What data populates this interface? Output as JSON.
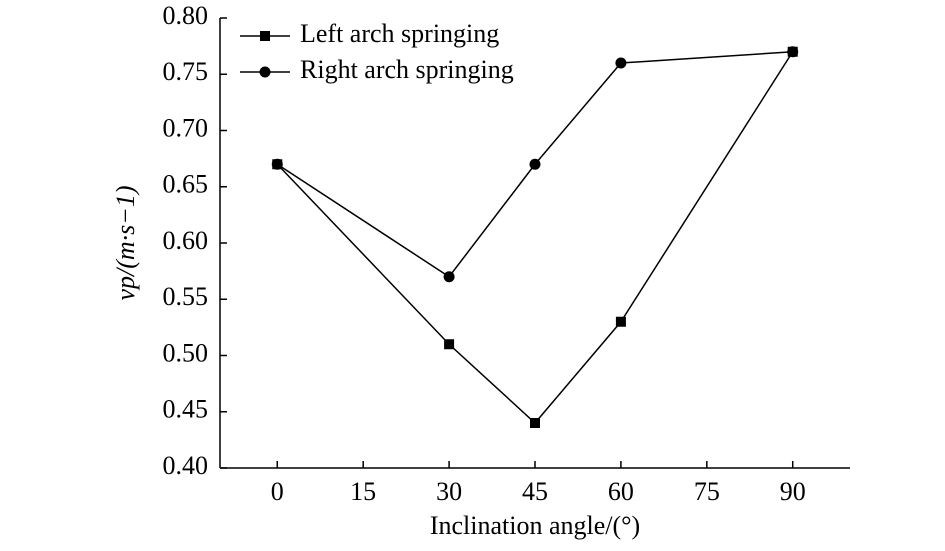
{
  "chart_data": {
    "type": "line",
    "x_label": "Inclination angle/(°)",
    "y_label": "vp/(m·s−1)",
    "x": [
      0,
      30,
      45,
      60,
      90
    ],
    "series": [
      {
        "name": "Left arch springing",
        "color": "#000000",
        "marker": "square",
        "values": [
          0.67,
          0.51,
          0.44,
          0.53,
          0.77
        ]
      },
      {
        "name": "Right arch springing",
        "color": "#000000",
        "marker": "circle",
        "values": [
          0.67,
          0.57,
          0.67,
          0.76,
          0.77
        ]
      }
    ],
    "xlim": [
      -10,
      100
    ],
    "xticks": [
      0,
      15,
      30,
      45,
      60,
      75,
      90
    ],
    "ylim": [
      0.4,
      0.8
    ],
    "yticks": [
      {
        "value": 0.4,
        "label": "0.40"
      },
      0.45,
      {
        "value": 0.5,
        "label": "0.50"
      },
      0.55,
      {
        "value": 0.6,
        "label": "0.60"
      },
      0.65,
      {
        "value": 0.7,
        "label": "0.70"
      },
      0.75,
      {
        "value": 0.8,
        "label": "0.80"
      }
    ],
    "legend": "upper-left"
  }
}
